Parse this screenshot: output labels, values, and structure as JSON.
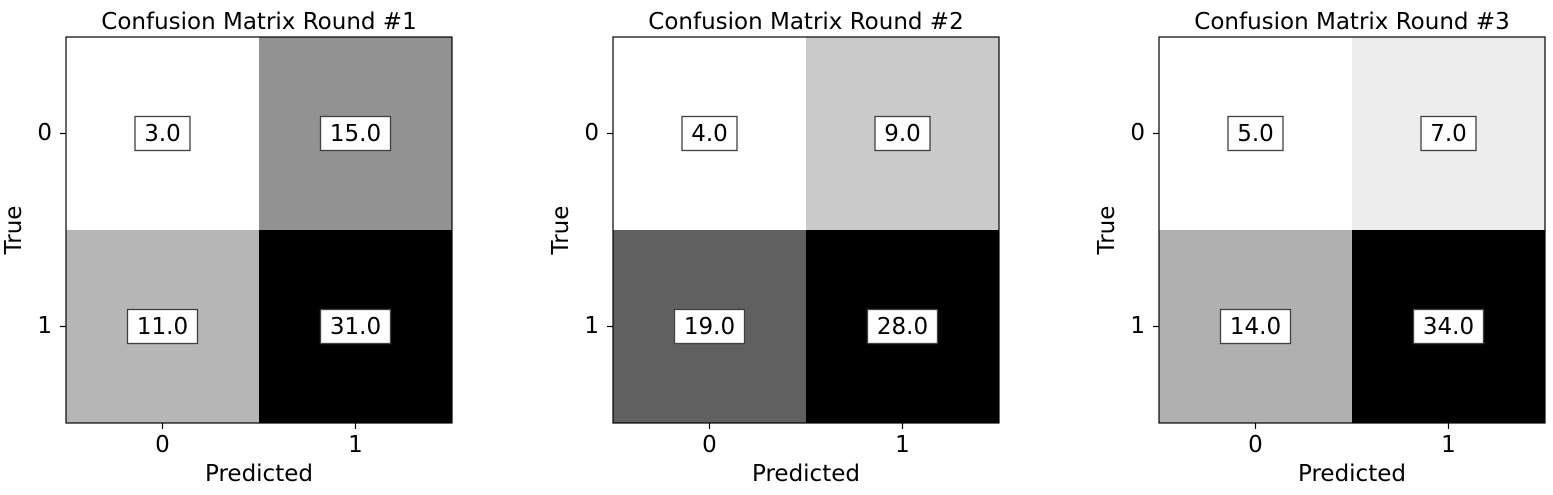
{
  "chart_data": [
    {
      "type": "heatmap",
      "title": "Confusion Matrix Round #1",
      "xlabel": "Predicted",
      "ylabel": "True",
      "x_categories": [
        "0",
        "1"
      ],
      "y_categories": [
        "0",
        "1"
      ],
      "values": [
        [
          3.0,
          15.0
        ],
        [
          11.0,
          31.0
        ]
      ],
      "value_labels": [
        [
          "3.0",
          "15.0"
        ],
        [
          "11.0",
          "31.0"
        ]
      ],
      "colormap": "Greys"
    },
    {
      "type": "heatmap",
      "title": "Confusion Matrix Round #2",
      "xlabel": "Predicted",
      "ylabel": "True",
      "x_categories": [
        "0",
        "1"
      ],
      "y_categories": [
        "0",
        "1"
      ],
      "values": [
        [
          4.0,
          9.0
        ],
        [
          19.0,
          28.0
        ]
      ],
      "value_labels": [
        [
          "4.0",
          "9.0"
        ],
        [
          "19.0",
          "28.0"
        ]
      ],
      "colormap": "Greys"
    },
    {
      "type": "heatmap",
      "title": "Confusion Matrix Round #3",
      "xlabel": "Predicted",
      "ylabel": "True",
      "x_categories": [
        "0",
        "1"
      ],
      "y_categories": [
        "0",
        "1"
      ],
      "values": [
        [
          5.0,
          7.0
        ],
        [
          14.0,
          34.0
        ]
      ],
      "value_labels": [
        [
          "5.0",
          "7.0"
        ],
        [
          "14.0",
          "34.0"
        ]
      ],
      "colormap": "Greys"
    }
  ]
}
